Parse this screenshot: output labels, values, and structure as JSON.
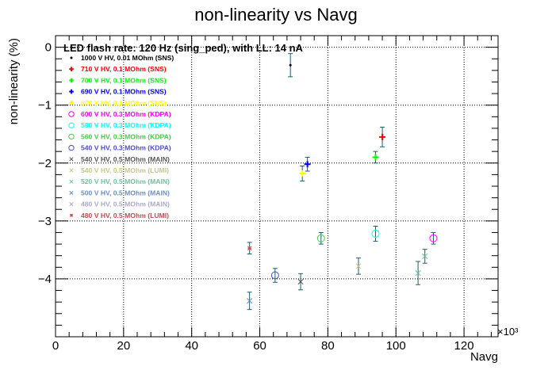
{
  "chart_data": {
    "type": "scatter",
    "title": "non-linearity vs Navg",
    "subtitle": "LED flash rate: 120 Hz  (sing_ped), with LL: 14 nA",
    "xlabel": "Navg",
    "ylabel": "non-linearity (%)",
    "x_multiplier": "×10³",
    "xlim": [
      0,
      130000
    ],
    "ylim": [
      -5.0,
      0.2
    ],
    "x_ticks": [
      0,
      20000,
      40000,
      60000,
      80000,
      100000,
      120000
    ],
    "x_tick_labels": [
      "0",
      "20",
      "40",
      "60",
      "80",
      "100",
      "120"
    ],
    "y_ticks": [
      0,
      -1,
      -2,
      -3,
      -4
    ],
    "y_tick_labels": [
      "0",
      "−1",
      "−2",
      "−3",
      "−4"
    ],
    "grid": true,
    "legend_position": "top-left",
    "series": [
      {
        "name": "1000 V HV, 0.01 MOhm (SNS)",
        "color": "#000000",
        "marker": "dot",
        "points": [
          {
            "x": 69000,
            "y": -0.31,
            "yerr": 0.2
          }
        ]
      },
      {
        "name": "710 V HV, 0.1 MOhm (SNS)",
        "color": "#ff0000",
        "marker": "plus",
        "points": [
          {
            "x": 96000,
            "y": -1.55,
            "yerr": 0.17
          }
        ]
      },
      {
        "name": "700 V HV, 0.1 MOhm (SNS)",
        "color": "#00ff00",
        "marker": "plus",
        "points": [
          {
            "x": 94000,
            "y": -1.9,
            "yerr": 0.1
          }
        ]
      },
      {
        "name": "690 V HV, 0.1 MOhm (SNS)",
        "color": "#0000ff",
        "marker": "plus",
        "points": [
          {
            "x": 74000,
            "y": -2.02,
            "yerr": 0.12
          }
        ]
      },
      {
        "name": "670 V HV, 0.1 MOhm (SNS)",
        "color": "#ffff00",
        "marker": "plus",
        "points": [
          {
            "x": 72500,
            "y": -2.18,
            "yerr": 0.13
          }
        ]
      },
      {
        "name": "600 V HV, 0.3 MOhm (KDPA)",
        "color": "#ff00ff",
        "marker": "circle",
        "points": [
          {
            "x": 111000,
            "y": -3.3,
            "yerr": 0.1
          }
        ]
      },
      {
        "name": "580 V HV, 0.3 MOhm (KDPA)",
        "color": "#00ffff",
        "marker": "circle",
        "points": [
          {
            "x": 94000,
            "y": -3.22,
            "yerr": 0.13
          }
        ]
      },
      {
        "name": "560 V HV, 0.3 MOhm (KDPA)",
        "color": "#4fc74f",
        "marker": "circle",
        "points": [
          {
            "x": 78000,
            "y": -3.3,
            "yerr": 0.1
          }
        ]
      },
      {
        "name": "540 V HV, 0.3 MOhm (KDPA)",
        "color": "#4d4dc7",
        "marker": "circle",
        "points": [
          {
            "x": 64500,
            "y": -3.94,
            "yerr": 0.12
          }
        ]
      },
      {
        "name": "540 V HV, 0.5 MOhm (MAIN)",
        "color": "#555555",
        "marker": "x",
        "points": [
          {
            "x": 72000,
            "y": -4.05,
            "yerr": 0.14
          }
        ]
      },
      {
        "name": "540 V HV, 0.5 MOhm (LUMI)",
        "color": "#c7c78a",
        "marker": "x",
        "points": [
          {
            "x": 89000,
            "y": -3.78,
            "yerr": 0.14
          }
        ]
      },
      {
        "name": "520 V HV, 0.5 MOhm (MAIN)",
        "color": "#6fc29a",
        "marker": "x",
        "points": [
          {
            "x": 106500,
            "y": -3.9,
            "yerr": 0.2
          },
          {
            "x": 108500,
            "y": -3.61,
            "yerr": 0.12
          }
        ]
      },
      {
        "name": "500 V HV, 0.5 MOhm (MAIN)",
        "color": "#6b8fc7",
        "marker": "x",
        "points": [
          {
            "x": 57000,
            "y": -4.38,
            "yerr": 0.15
          }
        ]
      },
      {
        "name": "480 V HV, 0.5 MOhm (MAIN)",
        "color": "#aaaacc",
        "marker": "x",
        "points": []
      },
      {
        "name": "480 V HV, 0.5 MOhm (LUMI)",
        "color": "#c74b4b",
        "marker": "star",
        "points": [
          {
            "x": 57000,
            "y": -3.47,
            "yerr": 0.1
          }
        ]
      }
    ]
  }
}
